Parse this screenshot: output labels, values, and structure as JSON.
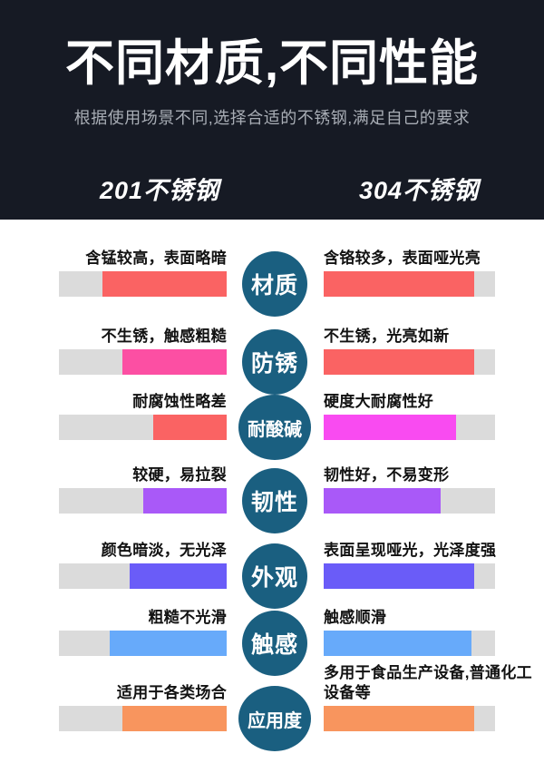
{
  "header": {
    "title": "不同材质,不同性能",
    "subtitle": "根据使用场景不同,选择合适的不锈钢,满足自己的要求",
    "left_column": "201不锈钢",
    "right_column": "304不锈钢",
    "bg_color": "#161a24"
  },
  "colors": {
    "badge": "#1a5f80",
    "track": "#dbdbdb",
    "red": "#fa6363",
    "pink": "#fc4fa3",
    "magenta": "#f94bf1",
    "purple": "#a959f8",
    "indigo": "#6a5cf8",
    "blue": "#67aafa",
    "orange": "#f8955e"
  },
  "rows": [
    {
      "category": "材质",
      "left": {
        "text": "含锰较高，表面略暗",
        "fill_pct": 74,
        "color": "#fa6363"
      },
      "right": {
        "text": "含铬较多，表面哑光亮",
        "fill_pct": 88,
        "color": "#fa6363"
      }
    },
    {
      "category": "防锈",
      "left": {
        "text": "不生锈，触感粗糙",
        "fill_pct": 62,
        "color": "#fc4fa3"
      },
      "right": {
        "text": "不生锈，光亮如新",
        "fill_pct": 88,
        "color": "#fa6363"
      }
    },
    {
      "category": "耐酸碱",
      "left": {
        "text": "耐腐蚀性略差",
        "fill_pct": 44,
        "color": "#fa6363"
      },
      "right": {
        "text": "硬度大耐腐性好",
        "fill_pct": 77,
        "color": "#f94bf1"
      }
    },
    {
      "category": "韧性",
      "left": {
        "text": "较硬，易拉裂",
        "fill_pct": 50,
        "color": "#a959f8"
      },
      "right": {
        "text": "韧性好，不易变形",
        "fill_pct": 68,
        "color": "#a959f8"
      }
    },
    {
      "category": "外观",
      "left": {
        "text": "颜色暗淡，无光泽",
        "fill_pct": 58,
        "color": "#6a5cf8"
      },
      "right": {
        "text": "表面呈现哑光，光泽度强",
        "fill_pct": 88,
        "color": "#6a5cf8"
      }
    },
    {
      "category": "触感",
      "left": {
        "text": "粗糙不光滑",
        "fill_pct": 70,
        "color": "#67aafa"
      },
      "right": {
        "text": "触感顺滑",
        "fill_pct": 86,
        "color": "#67aafa"
      }
    },
    {
      "category": "应用度",
      "left": {
        "text": "适用于各类场合",
        "fill_pct": 62,
        "color": "#f8955e"
      },
      "right": {
        "text": "多用于食品生产设备,普通化工设备等",
        "fill_pct": 88,
        "color": "#f8955e"
      }
    }
  ],
  "chart_data": {
    "type": "bar",
    "orientation": "horizontal",
    "title": "不同材质,不同性能",
    "subtitle": "根据使用场景不同,选择合适的不锈钢,满足自己的要求",
    "categories": [
      "材质",
      "防锈",
      "耐酸碱",
      "韧性",
      "外观",
      "触感",
      "应用度"
    ],
    "series": [
      {
        "name": "201不锈钢",
        "values_pct": [
          74,
          62,
          44,
          50,
          58,
          70,
          62
        ],
        "annotations": [
          "含锰较高，表面略暗",
          "不生锈，触感粗糙",
          "耐腐蚀性略差",
          "较硬，易拉裂",
          "颜色暗淡，无光泽",
          "粗糙不光滑",
          "适用于各类场合"
        ]
      },
      {
        "name": "304不锈钢",
        "values_pct": [
          88,
          88,
          77,
          68,
          88,
          86,
          88
        ],
        "annotations": [
          "含铬较多，表面哑光亮",
          "不生锈，光亮如新",
          "硬度大耐腐性好",
          "韧性好，不易变形",
          "表面呈现哑光，光泽度强",
          "触感顺滑",
          "多用于食品生产设备,普通化工设备等"
        ]
      }
    ],
    "value_range": [
      0,
      100
    ],
    "grid": false,
    "legend_position": "top"
  }
}
